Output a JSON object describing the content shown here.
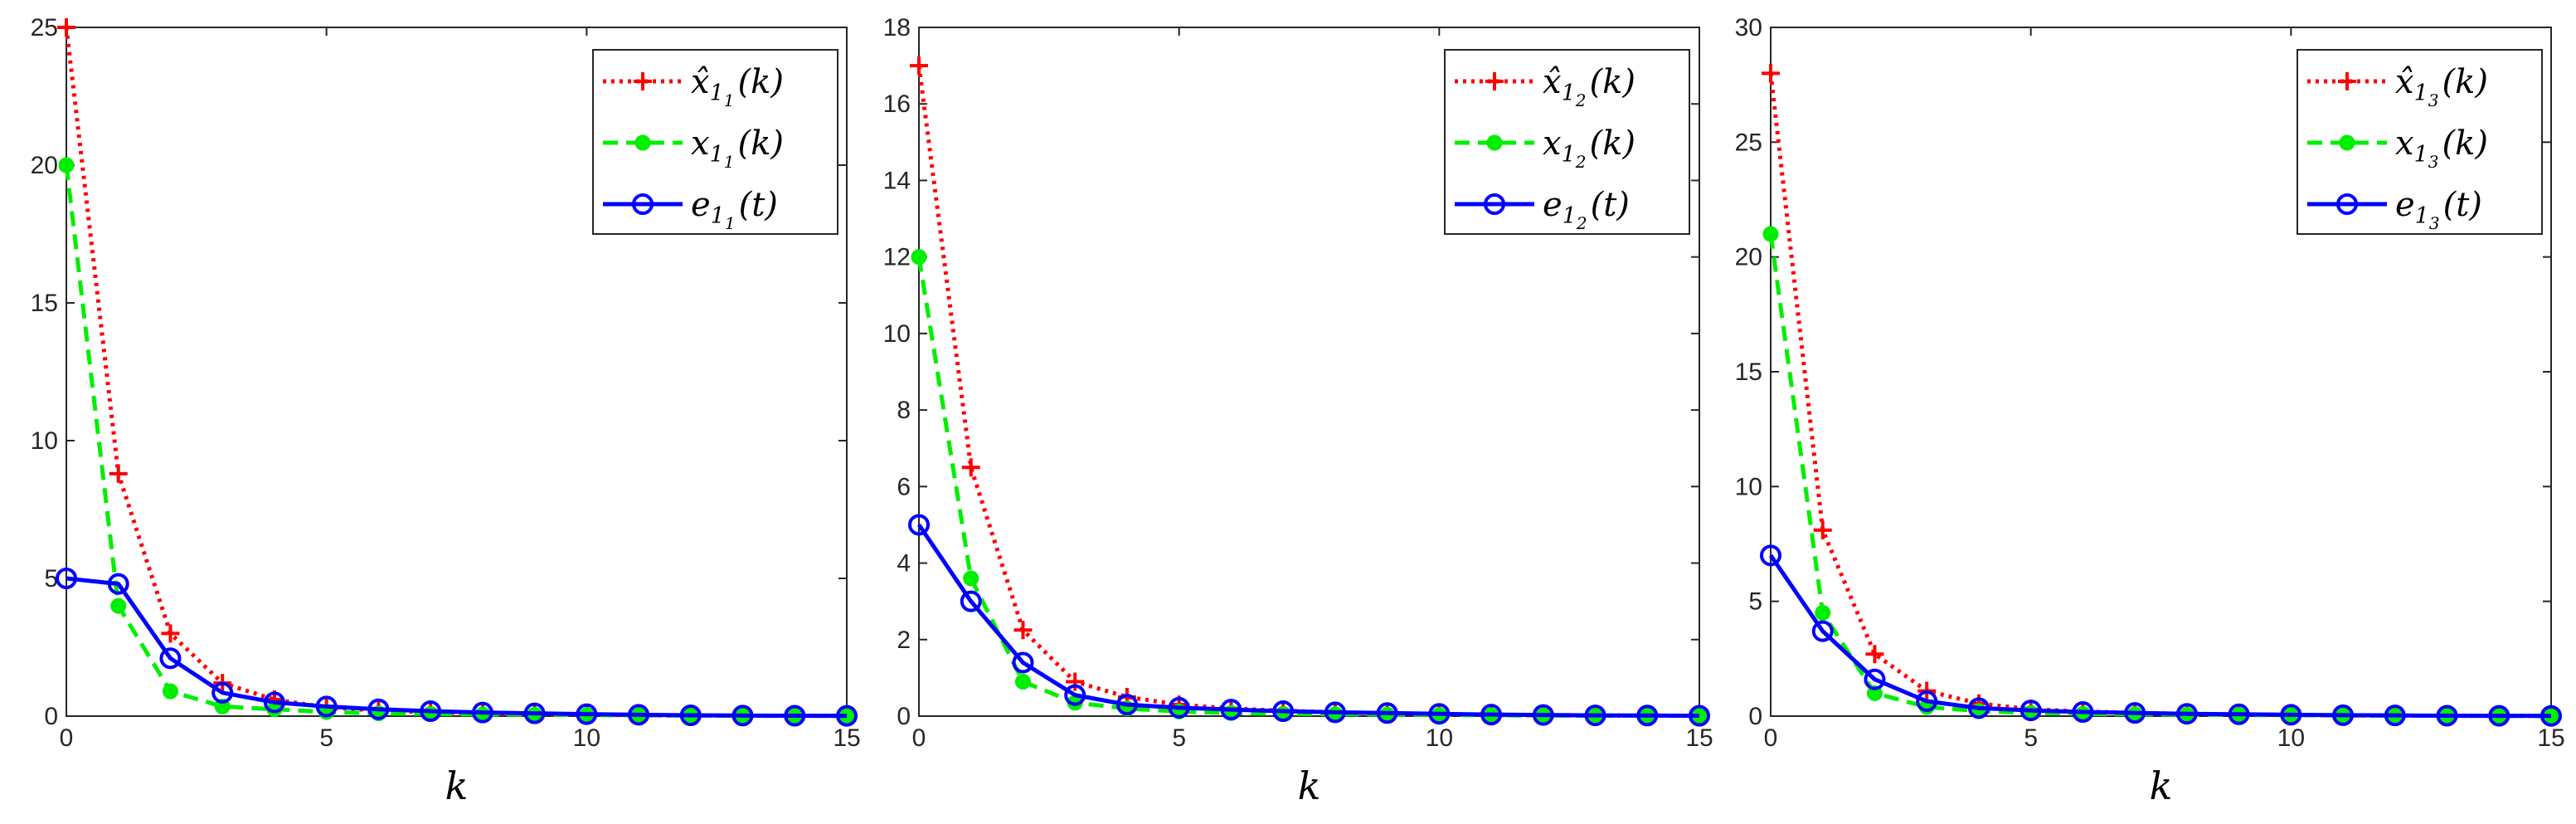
{
  "colors": {
    "red": "#ff0000",
    "green": "#00ee00",
    "blue": "#0000ff",
    "axis": "#262626"
  },
  "chart_data": [
    {
      "type": "line",
      "xlabel": "k",
      "ylabel": "",
      "xlim": [
        0,
        15
      ],
      "ylim": [
        0,
        25
      ],
      "xticks": [
        0,
        5,
        10,
        15
      ],
      "yticks": [
        0,
        5,
        10,
        15,
        20,
        25
      ],
      "grid": false,
      "legend_position": "top-right",
      "series": [
        {
          "label": {
            "base": "x̂",
            "sub": "1",
            "subsub": "1",
            "arg": "(k)"
          },
          "color": "red",
          "dash": "dotted",
          "marker": "plus",
          "x": [
            0,
            1,
            2,
            3,
            4,
            5,
            6,
            7,
            8,
            9,
            10,
            11,
            12,
            13,
            14,
            15
          ],
          "y": [
            25,
            8.8,
            3.0,
            1.2,
            0.6,
            0.32,
            0.2,
            0.14,
            0.1,
            0.07,
            0.05,
            0.03,
            0.02,
            0.015,
            0.01,
            0.01
          ]
        },
        {
          "label": {
            "base": "x",
            "sub": "1",
            "subsub": "1",
            "arg": "(k)"
          },
          "color": "green",
          "dash": "dashed",
          "marker": "dot",
          "x": [
            0,
            1,
            2,
            3,
            4,
            5,
            6,
            7,
            8,
            9,
            10,
            11,
            12,
            13,
            14,
            15
          ],
          "y": [
            20,
            4.0,
            0.9,
            0.35,
            0.25,
            0.15,
            0.1,
            0.08,
            0.06,
            0.05,
            0.04,
            0.03,
            0.02,
            0.015,
            0.01,
            0.01
          ]
        },
        {
          "label": {
            "base": "e",
            "sub": "1",
            "subsub": "1",
            "arg": "(t)"
          },
          "color": "blue",
          "dash": "solid",
          "marker": "circle",
          "x": [
            0,
            1,
            2,
            3,
            4,
            5,
            6,
            7,
            8,
            9,
            10,
            11,
            12,
            13,
            14,
            15
          ],
          "y": [
            5,
            4.8,
            2.1,
            0.85,
            0.5,
            0.35,
            0.25,
            0.18,
            0.13,
            0.1,
            0.07,
            0.05,
            0.03,
            0.02,
            0.015,
            0.01
          ]
        }
      ]
    },
    {
      "type": "line",
      "xlabel": "k",
      "ylabel": "",
      "xlim": [
        0,
        15
      ],
      "ylim": [
        0,
        18
      ],
      "xticks": [
        0,
        5,
        10,
        15
      ],
      "yticks": [
        0,
        2,
        4,
        6,
        8,
        10,
        12,
        14,
        16,
        18
      ],
      "grid": false,
      "legend_position": "top-right",
      "series": [
        {
          "label": {
            "base": "x̂",
            "sub": "1",
            "subsub": "2",
            "arg": "(k)"
          },
          "color": "red",
          "dash": "dotted",
          "marker": "plus",
          "x": [
            0,
            1,
            2,
            3,
            4,
            5,
            6,
            7,
            8,
            9,
            10,
            11,
            12,
            13,
            14,
            15
          ],
          "y": [
            17,
            6.5,
            2.25,
            0.9,
            0.5,
            0.3,
            0.2,
            0.14,
            0.1,
            0.07,
            0.05,
            0.03,
            0.02,
            0.015,
            0.01,
            0.01
          ]
        },
        {
          "label": {
            "base": "x",
            "sub": "1",
            "subsub": "2",
            "arg": "(k)"
          },
          "color": "green",
          "dash": "dashed",
          "marker": "dot",
          "x": [
            0,
            1,
            2,
            3,
            4,
            5,
            6,
            7,
            8,
            9,
            10,
            11,
            12,
            13,
            14,
            15
          ],
          "y": [
            12,
            3.6,
            0.9,
            0.35,
            0.2,
            0.12,
            0.08,
            0.06,
            0.05,
            0.04,
            0.03,
            0.02,
            0.015,
            0.01,
            0.01,
            0.01
          ]
        },
        {
          "label": {
            "base": "e",
            "sub": "1",
            "subsub": "2",
            "arg": "(t)"
          },
          "color": "blue",
          "dash": "solid",
          "marker": "circle",
          "x": [
            0,
            1,
            2,
            3,
            4,
            5,
            6,
            7,
            8,
            9,
            10,
            11,
            12,
            13,
            14,
            15
          ],
          "y": [
            5,
            3.0,
            1.4,
            0.55,
            0.3,
            0.22,
            0.17,
            0.13,
            0.1,
            0.08,
            0.06,
            0.04,
            0.03,
            0.02,
            0.015,
            0.01
          ]
        }
      ]
    },
    {
      "type": "line",
      "xlabel": "k",
      "ylabel": "",
      "xlim": [
        0,
        15
      ],
      "ylim": [
        0,
        30
      ],
      "xticks": [
        0,
        5,
        10,
        15
      ],
      "yticks": [
        0,
        5,
        10,
        15,
        20,
        25,
        30
      ],
      "grid": false,
      "legend_position": "top-right",
      "series": [
        {
          "label": {
            "base": "x̂",
            "sub": "1",
            "subsub": "3",
            "arg": "(k)"
          },
          "color": "red",
          "dash": "dotted",
          "marker": "plus",
          "x": [
            0,
            1,
            2,
            3,
            4,
            5,
            6,
            7,
            8,
            9,
            10,
            11,
            12,
            13,
            14,
            15
          ],
          "y": [
            28,
            8.1,
            2.7,
            1.1,
            0.55,
            0.3,
            0.2,
            0.14,
            0.1,
            0.07,
            0.05,
            0.03,
            0.02,
            0.015,
            0.01,
            0.01
          ]
        },
        {
          "label": {
            "base": "x",
            "sub": "1",
            "subsub": "3",
            "arg": "(k)"
          },
          "color": "green",
          "dash": "dashed",
          "marker": "dot",
          "x": [
            0,
            1,
            2,
            3,
            4,
            5,
            6,
            7,
            8,
            9,
            10,
            11,
            12,
            13,
            14,
            15
          ],
          "y": [
            21,
            4.5,
            1.0,
            0.4,
            0.22,
            0.14,
            0.1,
            0.08,
            0.06,
            0.05,
            0.04,
            0.03,
            0.02,
            0.015,
            0.01,
            0.01
          ]
        },
        {
          "label": {
            "base": "e",
            "sub": "1",
            "subsub": "3",
            "arg": "(t)"
          },
          "color": "blue",
          "dash": "solid",
          "marker": "circle",
          "x": [
            0,
            1,
            2,
            3,
            4,
            5,
            6,
            7,
            8,
            9,
            10,
            11,
            12,
            13,
            14,
            15
          ],
          "y": [
            7,
            3.7,
            1.6,
            0.65,
            0.35,
            0.25,
            0.18,
            0.14,
            0.1,
            0.08,
            0.06,
            0.04,
            0.03,
            0.02,
            0.015,
            0.01
          ]
        }
      ]
    }
  ]
}
